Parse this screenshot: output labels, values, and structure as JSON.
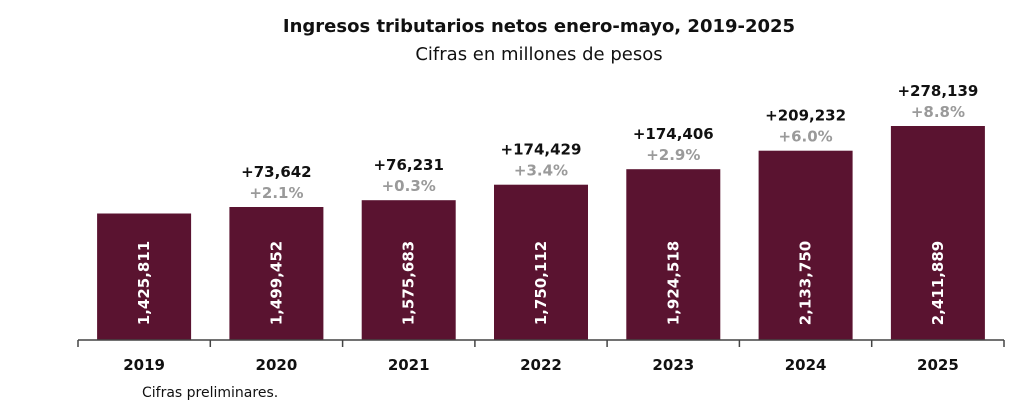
{
  "chart_data": {
    "type": "bar",
    "title": "Ingresos tributarios netos enero-mayo, 2019-2025",
    "subtitle": "Cifras en millones de pesos",
    "categories": [
      "2019",
      "2020",
      "2021",
      "2022",
      "2023",
      "2024",
      "2025"
    ],
    "values": [
      1425811,
      1499452,
      1575683,
      1750112,
      1924518,
      2133750,
      2411889
    ],
    "value_labels": [
      "1,425,811",
      "1,499,452",
      "1,575,683",
      "1,750,112",
      "1,924,518",
      "2,133,750",
      "2,411,889"
    ],
    "change_abs": [
      "",
      "+73,642",
      "+76,231",
      "+174,429",
      "+174,406",
      "+209,232",
      "+278,139"
    ],
    "change_pct": [
      "",
      "+2.1%",
      "+0.3%",
      "+3.4%",
      "+2.9%",
      "+6.0%",
      "+8.8%"
    ],
    "bar_color": "#5a1330",
    "pct_color": "#9a9a9a",
    "note": "Cifras preliminares."
  }
}
